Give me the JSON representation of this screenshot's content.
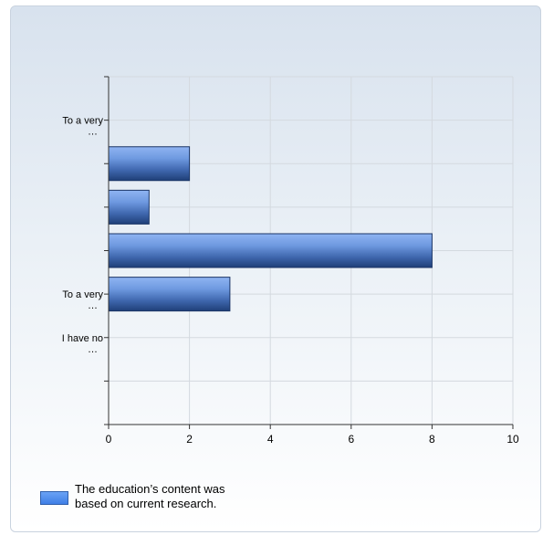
{
  "chart_data": {
    "type": "bar",
    "orientation": "horizontal",
    "categories": [
      "To a very …",
      "",
      "",
      "",
      "To a very …",
      "I have no …"
    ],
    "series": [
      {
        "name": "The education's content was based on current research.",
        "values": [
          0,
          2,
          1,
          8,
          3,
          0
        ]
      }
    ],
    "xlim": [
      0,
      10
    ],
    "xticks": [
      0,
      2,
      4,
      6,
      8,
      10
    ],
    "grid": true,
    "legend_position": "bottom-left",
    "colors": {
      "bar_top": "#8fb4f2",
      "bar_mid": "#4a79c9",
      "bar_bottom": "#1f3f78",
      "grid": "#d4d9df",
      "axis": "#333333"
    }
  },
  "legend": {
    "label": "The education’s content was based on current research."
  }
}
